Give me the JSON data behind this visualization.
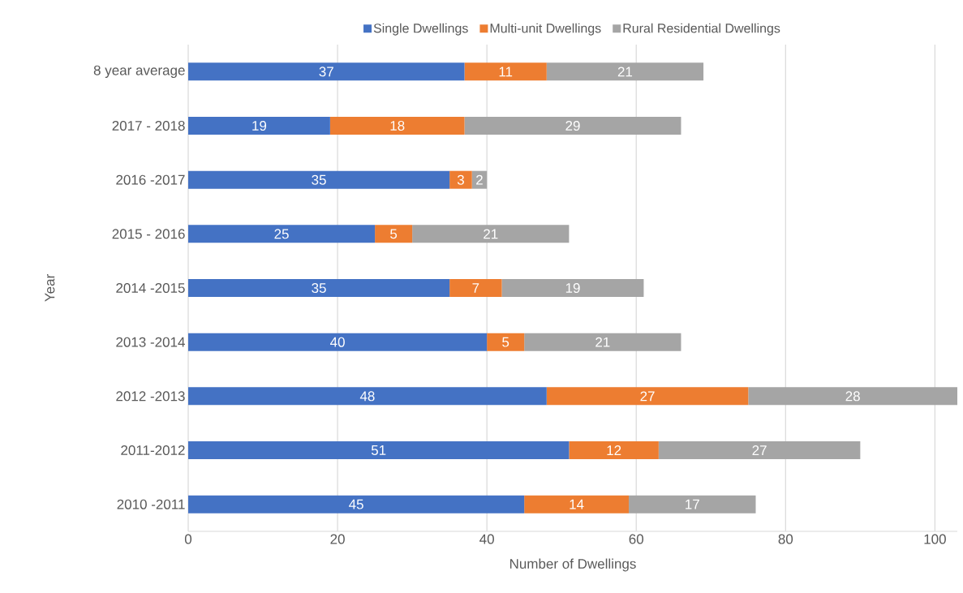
{
  "chart_data": {
    "type": "bar",
    "orientation": "horizontal",
    "stacked": true,
    "xlabel": "Number of Dwellings",
    "ylabel": "Year",
    "categories": [
      "8 year average",
      "2017 - 2018",
      "2016 -2017",
      "2015 - 2016",
      "2014 -2015",
      "2013 -2014",
      "2012 -2013",
      "2011-2012",
      "2010 -2011"
    ],
    "series": [
      {
        "name": "Single Dwellings",
        "color": "#4472c4",
        "values": [
          37,
          19,
          35,
          25,
          35,
          40,
          48,
          51,
          45
        ]
      },
      {
        "name": "Multi-unit Dwellings",
        "color": "#ed7d31",
        "values": [
          11,
          18,
          3,
          5,
          7,
          5,
          27,
          12,
          14
        ]
      },
      {
        "name": "Rural Residential Dwellings",
        "color": "#a5a5a5",
        "values": [
          21,
          29,
          2,
          21,
          19,
          21,
          28,
          27,
          17
        ]
      }
    ],
    "xlim": [
      0,
      103
    ],
    "xticks": [
      0,
      20,
      40,
      60,
      80,
      100
    ],
    "grid": "x",
    "legend": "top",
    "data_labels": true
  }
}
